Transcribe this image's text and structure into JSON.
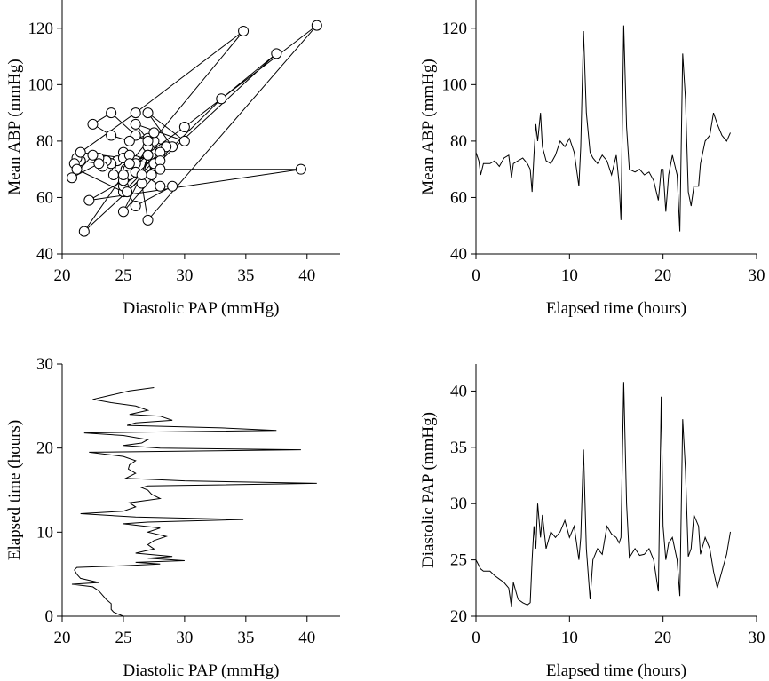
{
  "chart_data": [
    {
      "type": "scatter",
      "connected": true,
      "color": "#000000",
      "x_label": "Diastolic PAP (mmHg)",
      "y_label": "Mean ABP (mmHg)",
      "x": [
        25,
        24.5,
        24.2,
        24,
        24,
        23.6,
        23.3,
        23,
        22.5,
        20.8,
        23,
        21.5,
        21.2,
        21,
        21.2,
        25,
        28,
        26,
        30,
        27,
        29,
        26,
        27.5,
        27,
        27.5,
        28.5,
        27,
        28,
        25,
        27,
        34.8,
        26,
        21.5,
        25,
        26,
        25.5,
        28,
        27.3,
        27,
        26.5,
        27,
        40.8,
        30,
        25.2,
        26,
        25.4,
        25.5,
        26,
        25,
        22.2,
        39.5,
        28,
        25,
        26.5,
        27,
        25,
        21.8,
        37.5,
        33,
        25.3,
        26,
        29,
        28,
        25.5,
        27,
        26,
        24,
        22.5,
        24,
        25.5,
        27.5
      ],
      "values": [
        76,
        73,
        68,
        72,
        72,
        73,
        71,
        74,
        75,
        67,
        72,
        73,
        74,
        72,
        70,
        62,
        75,
        86,
        80,
        90,
        78,
        73,
        72,
        75,
        80,
        78,
        81,
        76,
        64,
        78,
        119,
        90,
        76,
        74,
        72,
        75,
        73,
        68,
        75,
        65,
        52,
        121,
        85,
        70,
        69,
        70,
        68,
        69,
        66,
        59,
        70,
        70,
        55,
        68,
        75,
        68,
        48,
        111,
        95,
        62,
        57,
        64,
        64,
        72,
        80,
        82,
        90,
        86,
        82,
        80,
        83
      ],
      "xlim": [
        20,
        42.7
      ],
      "ylim": [
        40,
        130
      ],
      "xticks": [
        20,
        25,
        30,
        35,
        40
      ],
      "yticks": [
        40,
        60,
        80,
        100,
        120
      ]
    },
    {
      "type": "line",
      "color": "#000000",
      "x_label": "Elapsed time (hours)",
      "y_label": "Mean ABP (mmHg)",
      "x": [
        0,
        0.3,
        0.5,
        0.8,
        1.5,
        2,
        2.5,
        3,
        3.5,
        3.8,
        4,
        4.5,
        5,
        5.5,
        5.8,
        6,
        6.2,
        6.4,
        6.6,
        6.9,
        7.1,
        7.5,
        8,
        8.5,
        9,
        9.5,
        10,
        10.5,
        11,
        11.2,
        11.5,
        11.8,
        12.2,
        12.5,
        13,
        13.5,
        14,
        14.5,
        15,
        15.3,
        15.5,
        15.8,
        16.1,
        16.4,
        17,
        17.5,
        18,
        18.5,
        19,
        19.5,
        19.8,
        20,
        20.3,
        20.6,
        21,
        21.5,
        21.8,
        22.1,
        22.4,
        22.7,
        23,
        23.3,
        23.8,
        24,
        24.5,
        25,
        25.4,
        25.8,
        26.3,
        26.8,
        27.2
      ],
      "values": [
        76,
        73,
        68,
        72,
        72,
        73,
        71,
        74,
        75,
        67,
        72,
        73,
        74,
        72,
        70,
        62,
        75,
        86,
        80,
        90,
        78,
        73,
        72,
        75,
        80,
        78,
        81,
        76,
        64,
        78,
        119,
        90,
        76,
        74,
        72,
        75,
        73,
        68,
        75,
        65,
        52,
        121,
        85,
        70,
        69,
        70,
        68,
        69,
        66,
        59,
        70,
        70,
        55,
        68,
        75,
        68,
        48,
        111,
        95,
        62,
        57,
        64,
        64,
        72,
        80,
        82,
        90,
        86,
        82,
        80,
        83
      ],
      "xlim": [
        0,
        30
      ],
      "ylim": [
        40,
        130
      ],
      "xticks": [
        0,
        10,
        20,
        30
      ],
      "yticks": [
        40,
        60,
        80,
        100,
        120
      ]
    },
    {
      "type": "line",
      "color": "#000000",
      "x_label": "Diastolic PAP (mmHg)",
      "y_label": "Elapsed time (hours)",
      "x": [
        25,
        24.5,
        24.2,
        24,
        24,
        23.6,
        23.3,
        23,
        22.5,
        20.8,
        23,
        21.5,
        21.2,
        21,
        21.2,
        25,
        28,
        26,
        30,
        27,
        29,
        26,
        27.5,
        27,
        27.5,
        28.5,
        27,
        28,
        25,
        27,
        34.8,
        26,
        21.5,
        25,
        26,
        25.5,
        28,
        27.3,
        27,
        26.5,
        27,
        40.8,
        30,
        25.2,
        26,
        25.4,
        25.5,
        26,
        25,
        22.2,
        39.5,
        28,
        25,
        26.5,
        27,
        25,
        21.8,
        37.5,
        33,
        25.3,
        26,
        29,
        28,
        25.5,
        27,
        26,
        24,
        22.5,
        24,
        25.5,
        27.5
      ],
      "values": [
        0,
        0.3,
        0.5,
        0.8,
        1.5,
        2,
        2.5,
        3,
        3.5,
        3.8,
        4,
        4.5,
        5,
        5.5,
        5.8,
        6,
        6.2,
        6.4,
        6.6,
        6.9,
        7.1,
        7.5,
        8,
        8.5,
        9,
        9.5,
        10,
        10.5,
        11,
        11.2,
        11.5,
        11.8,
        12.2,
        12.5,
        13,
        13.5,
        14,
        14.5,
        15,
        15.3,
        15.5,
        15.8,
        16.1,
        16.4,
        17,
        17.5,
        18,
        18.5,
        19,
        19.5,
        19.8,
        20,
        20.3,
        20.6,
        21,
        21.5,
        21.8,
        22.1,
        22.4,
        22.7,
        23,
        23.3,
        23.8,
        24,
        24.5,
        25,
        25.4,
        25.8,
        26.3,
        26.8,
        27.2
      ],
      "xlim": [
        20,
        42.7
      ],
      "ylim": [
        0,
        30
      ],
      "xticks": [
        20,
        25,
        30,
        35,
        40
      ],
      "yticks": [
        0,
        10,
        20,
        30
      ]
    },
    {
      "type": "line",
      "color": "#000000",
      "x_label": "Elapsed time (hours)",
      "y_label": "Diastolic PAP (mmHg)",
      "x": [
        0,
        0.3,
        0.5,
        0.8,
        1.5,
        2,
        2.5,
        3,
        3.5,
        3.8,
        4,
        4.5,
        5,
        5.5,
        5.8,
        6,
        6.2,
        6.4,
        6.6,
        6.9,
        7.1,
        7.5,
        8,
        8.5,
        9,
        9.5,
        10,
        10.5,
        11,
        11.2,
        11.5,
        11.8,
        12.2,
        12.5,
        13,
        13.5,
        14,
        14.5,
        15,
        15.3,
        15.5,
        15.8,
        16.1,
        16.4,
        17,
        17.5,
        18,
        18.5,
        19,
        19.5,
        19.8,
        20,
        20.3,
        20.6,
        21,
        21.5,
        21.8,
        22.1,
        22.4,
        22.7,
        23,
        23.3,
        23.8,
        24,
        24.5,
        25,
        25.4,
        25.8,
        26.3,
        26.8,
        27.2
      ],
      "values": [
        25,
        24.5,
        24.2,
        24,
        24,
        23.6,
        23.3,
        23,
        22.5,
        20.8,
        23,
        21.5,
        21.2,
        21,
        21.2,
        25,
        28,
        26,
        30,
        27,
        29,
        26,
        27.5,
        27,
        27.5,
        28.5,
        27,
        28,
        25,
        27,
        34.8,
        26,
        21.5,
        25,
        26,
        25.5,
        28,
        27.3,
        27,
        26.5,
        27,
        40.8,
        30,
        25.2,
        26,
        25.4,
        25.5,
        26,
        25,
        22.2,
        39.5,
        28,
        25,
        26.5,
        27,
        25,
        21.8,
        37.5,
        33,
        25.3,
        26,
        29,
        28,
        25.5,
        27,
        26,
        24,
        22.5,
        24,
        25.5,
        27.5
      ],
      "xlim": [
        0,
        30
      ],
      "ylim": [
        20,
        42.4
      ],
      "xticks": [
        0,
        10,
        20,
        30
      ],
      "yticks": [
        20,
        25,
        30,
        35,
        40
      ]
    }
  ]
}
